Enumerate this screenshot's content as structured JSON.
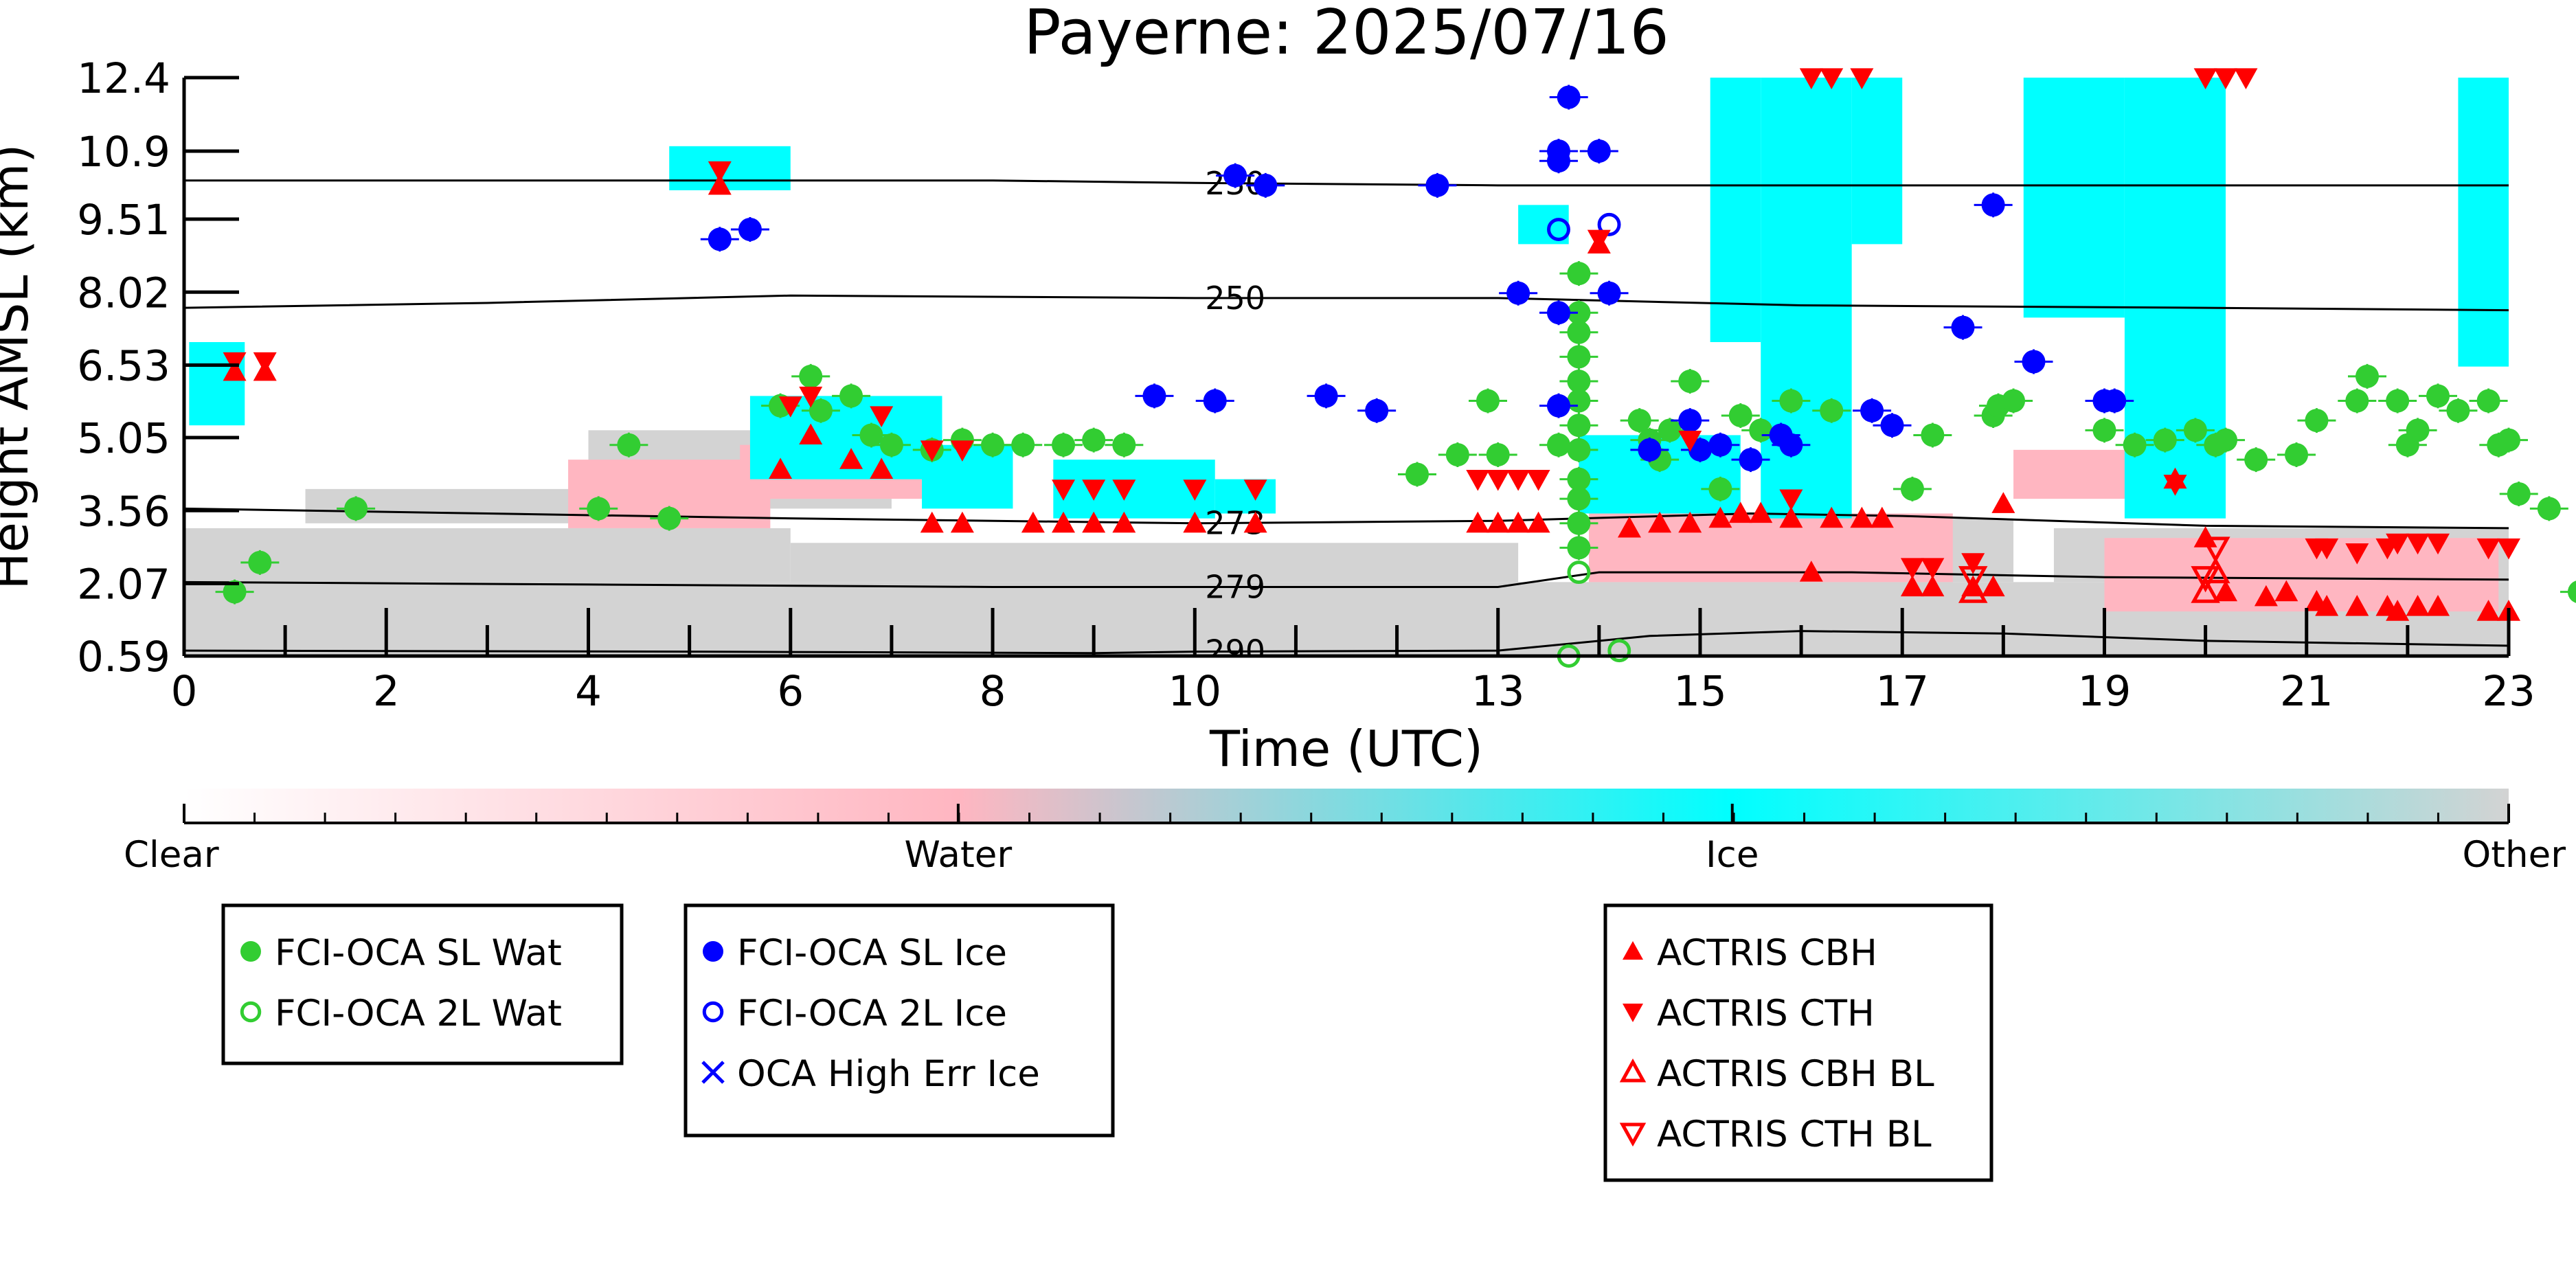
{
  "chart_data": {
    "type": "scatter",
    "title": "Payerne: 2025/07/16",
    "xlabel": "Time (UTC)",
    "ylabel": "Height AMSL (km)",
    "xlim": [
      0,
      23
    ],
    "ylim": [
      0.59,
      12.4
    ],
    "xticks": [
      0,
      2,
      4,
      6,
      8,
      10,
      13,
      15,
      17,
      19,
      21,
      23
    ],
    "yticks": [
      0.59,
      2.07,
      3.56,
      5.05,
      6.53,
      8.02,
      9.51,
      10.9,
      12.4
    ],
    "ytick_labels": [
      "0.59",
      "2.07",
      "3.56",
      "5.05",
      "6.53",
      "8.02",
      "9.51",
      "10.9",
      "12.4"
    ],
    "colors": {
      "water_fill": "#ffb6c1",
      "ice_fill": "#00ffff",
      "other_fill": "#d3d3d3",
      "sl_wat": "#32cd32",
      "sl_ice": "#0000ff",
      "actris": "#ff0000"
    },
    "colorbar": {
      "labels": [
        "Clear",
        "Water",
        "Ice",
        "Other"
      ],
      "stops": [
        "#ffffff",
        "#ffb6c1",
        "#00ffff",
        "#d3d3d3"
      ]
    },
    "contours": [
      {
        "label": "230",
        "x": [
          0,
          4,
          8,
          10,
          13,
          16,
          19,
          23
        ],
        "y": [
          10.3,
          10.3,
          10.3,
          10.25,
          10.2,
          10.2,
          10.2,
          10.2
        ]
      },
      {
        "label": "250",
        "x": [
          0,
          3,
          6,
          10,
          13,
          16,
          20,
          23
        ],
        "y": [
          7.7,
          7.8,
          7.95,
          7.9,
          7.9,
          7.75,
          7.7,
          7.65
        ]
      },
      {
        "label": "273",
        "x": [
          0,
          3,
          6,
          10,
          13,
          15.5,
          17,
          20,
          23
        ],
        "y": [
          3.6,
          3.5,
          3.4,
          3.3,
          3.35,
          3.5,
          3.45,
          3.25,
          3.2
        ]
      },
      {
        "label": "279",
        "x": [
          0,
          4,
          8,
          10,
          13,
          14,
          16.5,
          19,
          23
        ],
        "y": [
          2.1,
          2.05,
          2.0,
          2.0,
          2.0,
          2.3,
          2.3,
          2.2,
          2.15
        ]
      },
      {
        "label": "290",
        "x": [
          0,
          5,
          9,
          10,
          13,
          14.5,
          16,
          18,
          20,
          23
        ],
        "y": [
          0.7,
          0.68,
          0.65,
          0.68,
          0.7,
          1.0,
          1.1,
          1.05,
          0.9,
          0.8
        ]
      }
    ],
    "contour_label_x": [
      10.4,
      10.4,
      10.4,
      10.4,
      10.4
    ],
    "fills": [
      {
        "class": "other",
        "x0": 0,
        "x1": 23,
        "y0": 0.59,
        "y1": 2.1
      },
      {
        "class": "other",
        "x0": 0,
        "x1": 6,
        "y0": 2.1,
        "y1": 3.2
      },
      {
        "class": "other",
        "x0": 6,
        "x1": 13.2,
        "y0": 2.1,
        "y1": 2.9
      },
      {
        "class": "other",
        "x0": 1.2,
        "x1": 4,
        "y0": 3.3,
        "y1": 4.0
      },
      {
        "class": "other",
        "x0": 4,
        "x1": 7,
        "y0": 3.6,
        "y1": 5.2
      },
      {
        "class": "other",
        "x0": 13.9,
        "x1": 18.1,
        "y0": 2.1,
        "y1": 3.4
      },
      {
        "class": "other",
        "x0": 18.5,
        "x1": 23,
        "y0": 2.1,
        "y1": 3.2
      },
      {
        "class": "water",
        "x0": 13.9,
        "x1": 17.5,
        "y0": 2.1,
        "y1": 3.5
      },
      {
        "class": "water",
        "x0": 19.0,
        "x1": 22.9,
        "y0": 1.5,
        "y1": 3.0
      },
      {
        "class": "water",
        "x0": 5.5,
        "x1": 7.3,
        "y0": 3.8,
        "y1": 4.9
      },
      {
        "class": "water",
        "x0": 3.8,
        "x1": 5.8,
        "y0": 3.2,
        "y1": 4.6
      },
      {
        "class": "water",
        "x0": 18.1,
        "x1": 19.5,
        "y0": 3.8,
        "y1": 4.8
      },
      {
        "class": "ice",
        "x0": 0.05,
        "x1": 0.6,
        "y0": 5.3,
        "y1": 7.0
      },
      {
        "class": "ice",
        "x0": 4.8,
        "x1": 6.0,
        "y0": 10.1,
        "y1": 11.0
      },
      {
        "class": "ice",
        "x0": 5.6,
        "x1": 7.5,
        "y0": 4.2,
        "y1": 5.9
      },
      {
        "class": "ice",
        "x0": 7.3,
        "x1": 8.2,
        "y0": 3.6,
        "y1": 4.9
      },
      {
        "class": "ice",
        "x0": 8.6,
        "x1": 10.2,
        "y0": 3.4,
        "y1": 4.6
      },
      {
        "class": "ice",
        "x0": 10.2,
        "x1": 10.8,
        "y0": 3.5,
        "y1": 4.2
      },
      {
        "class": "ice",
        "x0": 13.2,
        "x1": 13.7,
        "y0": 9.0,
        "y1": 9.8
      },
      {
        "class": "ice",
        "x0": 13.8,
        "x1": 15.4,
        "y0": 3.5,
        "y1": 5.1
      },
      {
        "class": "ice",
        "x0": 15.6,
        "x1": 16.5,
        "y0": 3.4,
        "y1": 12.4
      },
      {
        "class": "ice",
        "x0": 19.2,
        "x1": 20.2,
        "y0": 3.4,
        "y1": 12.4
      },
      {
        "class": "ice",
        "x0": 15.1,
        "x1": 15.6,
        "y0": 7.0,
        "y1": 12.4
      },
      {
        "class": "ice",
        "x0": 16.5,
        "x1": 17.0,
        "y0": 9.0,
        "y1": 12.4
      },
      {
        "class": "ice",
        "x0": 18.2,
        "x1": 19.2,
        "y0": 7.5,
        "y1": 12.4
      },
      {
        "class": "ice",
        "x0": 22.5,
        "x1": 23.0,
        "y0": 6.5,
        "y1": 12.4
      }
    ],
    "series": [
      {
        "name": "FCI-OCA SL Wat",
        "marker": "filled-circle",
        "points": [
          [
            0.5,
            1.9
          ],
          [
            0.75,
            2.5
          ],
          [
            1.7,
            3.6
          ],
          [
            4.1,
            3.6
          ],
          [
            4.4,
            4.9
          ],
          [
            4.8,
            3.4
          ],
          [
            5.9,
            5.7
          ],
          [
            6.2,
            6.3
          ],
          [
            6.3,
            5.6
          ],
          [
            6.6,
            5.9
          ],
          [
            6.8,
            5.1
          ],
          [
            7.0,
            4.9
          ],
          [
            7.4,
            4.8
          ],
          [
            7.7,
            5.0
          ],
          [
            8.0,
            4.9
          ],
          [
            8.3,
            4.9
          ],
          [
            8.7,
            4.9
          ],
          [
            9.0,
            5.0
          ],
          [
            9.3,
            4.9
          ],
          [
            12.2,
            4.3
          ],
          [
            12.6,
            4.7
          ],
          [
            12.9,
            5.8
          ],
          [
            13.0,
            4.7
          ],
          [
            13.6,
            4.9
          ],
          [
            13.8,
            2.8
          ],
          [
            13.8,
            3.3
          ],
          [
            13.8,
            3.8
          ],
          [
            13.8,
            4.2
          ],
          [
            13.8,
            4.8
          ],
          [
            13.8,
            5.3
          ],
          [
            13.8,
            5.8
          ],
          [
            13.8,
            6.2
          ],
          [
            13.8,
            6.7
          ],
          [
            13.8,
            7.2
          ],
          [
            13.8,
            7.6
          ],
          [
            13.8,
            8.4
          ],
          [
            14.4,
            5.4
          ],
          [
            14.5,
            5.0
          ],
          [
            14.6,
            4.6
          ],
          [
            14.7,
            5.2
          ],
          [
            14.9,
            6.2
          ],
          [
            15.2,
            4.0
          ],
          [
            15.4,
            5.5
          ],
          [
            15.6,
            5.2
          ],
          [
            15.9,
            5.8
          ],
          [
            16.3,
            5.6
          ],
          [
            17.1,
            4.0
          ],
          [
            17.3,
            5.1
          ],
          [
            17.9,
            5.5
          ],
          [
            17.95,
            5.7
          ],
          [
            18.1,
            5.8
          ],
          [
            19.0,
            5.2
          ],
          [
            19.3,
            4.9
          ],
          [
            19.6,
            5.0
          ],
          [
            19.9,
            5.2
          ],
          [
            20.1,
            4.9
          ],
          [
            20.2,
            5.0
          ],
          [
            20.5,
            4.6
          ],
          [
            20.9,
            4.7
          ],
          [
            21.1,
            5.4
          ],
          [
            21.5,
            5.8
          ],
          [
            21.6,
            6.3
          ],
          [
            21.9,
            5.8
          ],
          [
            22.0,
            4.9
          ],
          [
            22.1,
            5.2
          ],
          [
            22.3,
            5.9
          ],
          [
            22.5,
            5.6
          ],
          [
            22.8,
            5.8
          ],
          [
            22.9,
            4.9
          ],
          [
            23.0,
            5.0
          ],
          [
            23.1,
            3.9
          ],
          [
            23.4,
            3.6
          ],
          [
            23.7,
            1.9
          ]
        ]
      },
      {
        "name": "FCI-OCA 2L Wat",
        "marker": "open-circle",
        "points": [
          [
            13.8,
            2.3
          ],
          [
            13.7,
            0.59
          ],
          [
            14.2,
            0.7
          ]
        ]
      },
      {
        "name": "FCI-OCA SL Ice",
        "marker": "filled-circle",
        "points": [
          [
            5.3,
            9.1
          ],
          [
            5.6,
            9.3
          ],
          [
            9.6,
            5.9
          ],
          [
            10.2,
            5.8
          ],
          [
            10.4,
            10.4
          ],
          [
            10.7,
            10.2
          ],
          [
            11.3,
            5.9
          ],
          [
            11.8,
            5.6
          ],
          [
            12.4,
            10.2
          ],
          [
            13.2,
            8.0
          ],
          [
            13.6,
            10.7
          ],
          [
            13.6,
            10.9
          ],
          [
            13.7,
            12.0
          ],
          [
            13.6,
            7.6
          ],
          [
            13.6,
            5.7
          ],
          [
            14.0,
            10.9
          ],
          [
            14.1,
            8.0
          ],
          [
            14.5,
            4.8
          ],
          [
            14.9,
            5.4
          ],
          [
            15.0,
            4.8
          ],
          [
            15.2,
            4.9
          ],
          [
            15.5,
            4.6
          ],
          [
            15.8,
            5.1
          ],
          [
            15.9,
            4.9
          ],
          [
            16.7,
            5.6
          ],
          [
            16.9,
            5.3
          ],
          [
            17.6,
            7.3
          ],
          [
            17.9,
            9.8
          ],
          [
            18.3,
            6.6
          ],
          [
            19.0,
            5.8
          ],
          [
            19.1,
            5.8
          ]
        ]
      },
      {
        "name": "FCI-OCA 2L Ice",
        "marker": "open-circle",
        "points": [
          [
            13.6,
            9.3
          ],
          [
            14.1,
            9.4
          ]
        ]
      },
      {
        "name": "OCA High Err Ice",
        "marker": "cross",
        "points": []
      },
      {
        "name": "ACTRIS CBH",
        "marker": "triangle-up",
        "points": [
          [
            0.5,
            6.4
          ],
          [
            0.8,
            6.4
          ],
          [
            5.3,
            10.2
          ],
          [
            5.9,
            4.4
          ],
          [
            6.2,
            5.1
          ],
          [
            6.6,
            4.6
          ],
          [
            6.9,
            4.4
          ],
          [
            7.4,
            3.3
          ],
          [
            7.7,
            3.3
          ],
          [
            8.4,
            3.3
          ],
          [
            8.7,
            3.3
          ],
          [
            9.0,
            3.3
          ],
          [
            9.3,
            3.3
          ],
          [
            10.0,
            3.3
          ],
          [
            10.6,
            3.3
          ],
          [
            12.8,
            3.3
          ],
          [
            13.0,
            3.3
          ],
          [
            13.2,
            3.3
          ],
          [
            13.4,
            3.3
          ],
          [
            14.0,
            9.0
          ],
          [
            14.3,
            3.2
          ],
          [
            14.6,
            3.3
          ],
          [
            14.9,
            3.3
          ],
          [
            15.2,
            3.4
          ],
          [
            15.4,
            3.5
          ],
          [
            15.6,
            3.5
          ],
          [
            15.9,
            3.4
          ],
          [
            16.1,
            2.3
          ],
          [
            16.3,
            3.4
          ],
          [
            16.6,
            3.4
          ],
          [
            16.8,
            3.4
          ],
          [
            17.1,
            2.0
          ],
          [
            17.3,
            2.0
          ],
          [
            17.7,
            2.0
          ],
          [
            17.9,
            2.0
          ],
          [
            18.0,
            3.7
          ],
          [
            19.7,
            4.2
          ],
          [
            20.0,
            3.0
          ],
          [
            20.2,
            1.9
          ],
          [
            20.6,
            1.8
          ],
          [
            20.8,
            1.9
          ],
          [
            21.1,
            1.7
          ],
          [
            21.2,
            1.6
          ],
          [
            21.5,
            1.6
          ],
          [
            21.8,
            1.6
          ],
          [
            21.9,
            1.5
          ],
          [
            22.1,
            1.6
          ],
          [
            22.3,
            1.6
          ],
          [
            22.8,
            1.5
          ],
          [
            23.0,
            1.5
          ]
        ]
      },
      {
        "name": "ACTRIS CTH",
        "marker": "triangle-down",
        "points": [
          [
            0.5,
            6.6
          ],
          [
            0.8,
            6.6
          ],
          [
            5.3,
            10.5
          ],
          [
            6.0,
            5.7
          ],
          [
            6.2,
            5.9
          ],
          [
            6.9,
            5.5
          ],
          [
            7.4,
            4.8
          ],
          [
            7.7,
            4.8
          ],
          [
            8.7,
            4.0
          ],
          [
            9.0,
            4.0
          ],
          [
            9.3,
            4.0
          ],
          [
            10.0,
            4.0
          ],
          [
            10.6,
            4.0
          ],
          [
            12.8,
            4.2
          ],
          [
            13.0,
            4.2
          ],
          [
            13.2,
            4.2
          ],
          [
            13.4,
            4.2
          ],
          [
            14.0,
            9.1
          ],
          [
            14.9,
            5.0
          ],
          [
            15.9,
            3.8
          ],
          [
            16.1,
            12.4
          ],
          [
            16.3,
            12.4
          ],
          [
            16.6,
            12.4
          ],
          [
            17.1,
            2.4
          ],
          [
            17.3,
            2.4
          ],
          [
            17.7,
            2.5
          ],
          [
            19.7,
            4.1
          ],
          [
            20.0,
            12.4
          ],
          [
            20.2,
            12.4
          ],
          [
            20.4,
            12.4
          ],
          [
            21.1,
            2.8
          ],
          [
            21.2,
            2.8
          ],
          [
            21.5,
            2.7
          ],
          [
            21.8,
            2.8
          ],
          [
            21.9,
            2.9
          ],
          [
            22.1,
            2.9
          ],
          [
            22.3,
            2.9
          ],
          [
            22.8,
            2.8
          ],
          [
            23.0,
            2.8
          ]
        ]
      },
      {
        "name": "ACTRIS CBH BL",
        "marker": "open-triangle-up",
        "points": [
          [
            17.7,
            1.9
          ],
          [
            20.0,
            1.9
          ],
          [
            20.1,
            2.3
          ]
        ]
      },
      {
        "name": "ACTRIS CTH BL",
        "marker": "open-triangle-down",
        "points": [
          [
            17.7,
            2.2
          ],
          [
            20.0,
            2.2
          ],
          [
            20.1,
            2.8
          ]
        ]
      }
    ]
  }
}
